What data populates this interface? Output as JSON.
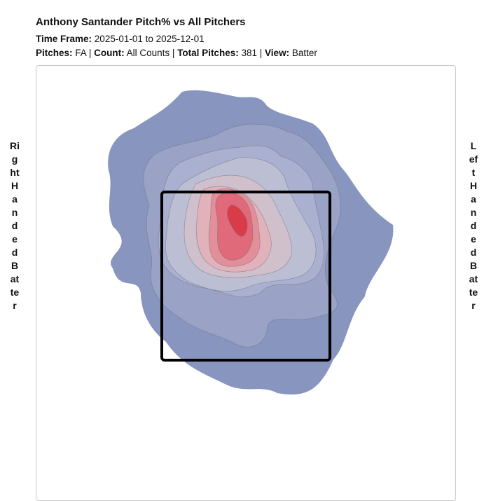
{
  "header": {
    "title": "Anthony Santander Pitch% vs All Pitchers",
    "time_frame_label": "Time Frame:",
    "time_frame_value": "2025-01-01 to 2025-12-01",
    "pitches_label": "Pitches:",
    "pitches_value": "FA",
    "count_label": "Count:",
    "count_value": "All Counts",
    "total_label": "Total Pitches:",
    "total_value": "381",
    "view_label": "View:",
    "view_value": "Batter",
    "separator": "|"
  },
  "side_labels": {
    "left": "Right Handed Batter",
    "right": "Left Handed Batter"
  },
  "chart_data": {
    "type": "heatmap",
    "colors": {
      "low": "#8795bf",
      "high": "#d93c48",
      "strike_zone": "#000000",
      "contour_line": "#6f6f80"
    },
    "levels": 8,
    "strike_zone_visible": true
  }
}
